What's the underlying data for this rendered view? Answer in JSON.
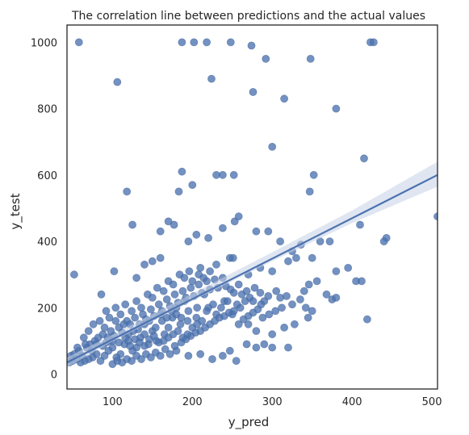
{
  "chart_data": {
    "type": "scatter",
    "title": "The correlation line between predictions and the actual values",
    "xlabel": "y_pred",
    "ylabel": "y_test",
    "xlim": [
      43,
      507
    ],
    "ylim": [
      -45,
      1052
    ],
    "xticks": [
      100,
      200,
      300,
      400,
      500
    ],
    "yticks": [
      0,
      200,
      400,
      600,
      800,
      1000
    ],
    "grid": false,
    "legend": "none",
    "point_color": "#4c72b0",
    "line_color": "#4c72b0",
    "band_color": "#c4d1e6",
    "regression": {
      "x": [
        43,
        507
      ],
      "y": [
        35,
        600
      ],
      "ci_band": {
        "x": [
          43,
          100,
          200,
          300,
          400,
          507
        ],
        "lower": [
          20,
          98,
          220,
          340,
          455,
          565
        ],
        "upper": [
          50,
          118,
          243,
          367,
          493,
          640
        ]
      }
    },
    "series": [
      {
        "points": [
          [
            58,
            1000
          ],
          [
            187,
            1000
          ],
          [
            202,
            1000
          ],
          [
            218,
            1000
          ],
          [
            248,
            1000
          ],
          [
            274,
            990
          ],
          [
            292,
            950
          ],
          [
            348,
            950
          ],
          [
            423,
            1000
          ],
          [
            427,
            1000
          ],
          [
            106,
            880
          ],
          [
            224,
            890
          ],
          [
            276,
            850
          ],
          [
            315,
            830
          ],
          [
            380,
            800
          ],
          [
            300,
            685
          ],
          [
            415,
            650
          ],
          [
            187,
            610
          ],
          [
            200,
            570
          ],
          [
            183,
            550
          ],
          [
            118,
            550
          ],
          [
            230,
            600
          ],
          [
            238,
            600
          ],
          [
            252,
            600
          ],
          [
            347,
            550
          ],
          [
            352,
            600
          ],
          [
            160,
            430
          ],
          [
            170,
            460
          ],
          [
            177,
            450
          ],
          [
            195,
            400
          ],
          [
            205,
            420
          ],
          [
            220,
            410
          ],
          [
            238,
            440
          ],
          [
            253,
            460
          ],
          [
            258,
            475
          ],
          [
            280,
            430
          ],
          [
            295,
            430
          ],
          [
            310,
            400
          ],
          [
            325,
            370
          ],
          [
            336,
            390
          ],
          [
            350,
            350
          ],
          [
            360,
            400
          ],
          [
            372,
            400
          ],
          [
            125,
            450
          ],
          [
            410,
            450
          ],
          [
            419,
            165
          ],
          [
            443,
            410
          ],
          [
            440,
            400
          ],
          [
            507,
            475
          ],
          [
            52,
            300
          ],
          [
            102,
            310
          ],
          [
            130,
            290
          ],
          [
            140,
            330
          ],
          [
            150,
            340
          ],
          [
            160,
            350
          ],
          [
            210,
            320
          ],
          [
            230,
            330
          ],
          [
            247,
            350
          ],
          [
            251,
            350
          ],
          [
            270,
            300
          ],
          [
            285,
            320
          ],
          [
            300,
            310
          ],
          [
            320,
            340
          ],
          [
            330,
            350
          ],
          [
            340,
            250
          ],
          [
            346,
            270
          ],
          [
            356,
            280
          ],
          [
            368,
            240
          ],
          [
            380,
            310
          ],
          [
            395,
            320
          ],
          [
            405,
            280
          ],
          [
            412,
            280
          ],
          [
            375,
            225
          ],
          [
            380,
            230
          ],
          [
            350,
            190
          ],
          [
            345,
            170
          ],
          [
            328,
            150
          ],
          [
            315,
            140
          ],
          [
            300,
            120
          ],
          [
            280,
            80
          ],
          [
            268,
            90
          ],
          [
            255,
            40
          ],
          [
            247,
            70
          ],
          [
            238,
            55
          ],
          [
            225,
            45
          ],
          [
            210,
            60
          ],
          [
            195,
            55
          ],
          [
            180,
            70
          ],
          [
            320,
            80
          ],
          [
            300,
            80
          ],
          [
            290,
            90
          ],
          [
            280,
            130
          ],
          [
            270,
            150
          ],
          [
            260,
            200
          ],
          [
            250,
            180
          ],
          [
            240,
            220
          ],
          [
            230,
            180
          ],
          [
            220,
            200
          ],
          [
            215,
            240
          ],
          [
            205,
            170
          ],
          [
            195,
            190
          ],
          [
            190,
            220
          ],
          [
            185,
            150
          ],
          [
            180,
            200
          ],
          [
            175,
            170
          ],
          [
            170,
            140
          ],
          [
            165,
            120
          ],
          [
            160,
            180
          ],
          [
            155,
            100
          ],
          [
            150,
            130
          ],
          [
            145,
            90
          ],
          [
            140,
            150
          ],
          [
            135,
            110
          ],
          [
            130,
            80
          ],
          [
            125,
            70
          ],
          [
            120,
            120
          ],
          [
            115,
            90
          ],
          [
            110,
            60
          ],
          [
            105,
            50
          ],
          [
            100,
            80
          ],
          [
            95,
            70
          ],
          [
            90,
            55
          ],
          [
            85,
            40
          ],
          [
            80,
            60
          ],
          [
            75,
            50
          ],
          [
            70,
            45
          ],
          [
            65,
            40
          ],
          [
            60,
            35
          ],
          [
            55,
            45
          ],
          [
            50,
            40
          ],
          [
            46,
            35
          ],
          [
            48,
            55
          ],
          [
            52,
            60
          ],
          [
            58,
            70
          ],
          [
            62,
            55
          ],
          [
            68,
            80
          ],
          [
            72,
            90
          ],
          [
            78,
            100
          ],
          [
            82,
            110
          ],
          [
            88,
            120
          ],
          [
            92,
            95
          ],
          [
            98,
            130
          ],
          [
            102,
            115
          ],
          [
            108,
            140
          ],
          [
            112,
            125
          ],
          [
            118,
            160
          ],
          [
            122,
            150
          ],
          [
            128,
            170
          ],
          [
            132,
            135
          ],
          [
            138,
            180
          ],
          [
            142,
            165
          ],
          [
            148,
            195
          ],
          [
            152,
            175
          ],
          [
            158,
            210
          ],
          [
            162,
            190
          ],
          [
            168,
            225
          ],
          [
            172,
            205
          ],
          [
            178,
            240
          ],
          [
            182,
            215
          ],
          [
            188,
            250
          ],
          [
            192,
            230
          ],
          [
            198,
            260
          ],
          [
            202,
            235
          ],
          [
            208,
            270
          ],
          [
            212,
            245
          ],
          [
            218,
            280
          ],
          [
            222,
            255
          ],
          [
            228,
            285
          ],
          [
            232,
            260
          ],
          [
            238,
            290
          ],
          [
            242,
            265
          ],
          [
            248,
            255
          ],
          [
            252,
            245
          ],
          [
            258,
            270
          ],
          [
            262,
            240
          ],
          [
            268,
            250
          ],
          [
            272,
            230
          ],
          [
            278,
            260
          ],
          [
            285,
            245
          ],
          [
            290,
            220
          ],
          [
            295,
            235
          ],
          [
            305,
            250
          ],
          [
            310,
            230
          ],
          [
            318,
            235
          ],
          [
            325,
            210
          ],
          [
            335,
            225
          ],
          [
            342,
            200
          ],
          [
            86,
            240
          ],
          [
            92,
            190
          ],
          [
            96,
            170
          ],
          [
            104,
            200
          ],
          [
            110,
            180
          ],
          [
            116,
            210
          ],
          [
            124,
            190
          ],
          [
            130,
            220
          ],
          [
            136,
            200
          ],
          [
            144,
            240
          ],
          [
            150,
            230
          ],
          [
            156,
            260
          ],
          [
            164,
            250
          ],
          [
            170,
            280
          ],
          [
            176,
            270
          ],
          [
            184,
            300
          ],
          [
            190,
            290
          ],
          [
            196,
            310
          ],
          [
            200,
            280
          ],
          [
            208,
            300
          ],
          [
            214,
            290
          ],
          [
            222,
            310
          ],
          [
            100,
            30
          ],
          [
            106,
            40
          ],
          [
            112,
            35
          ],
          [
            118,
            45
          ],
          [
            124,
            40
          ],
          [
            130,
            55
          ],
          [
            136,
            45
          ],
          [
            142,
            60
          ],
          [
            148,
            50
          ],
          [
            154,
            65
          ],
          [
            160,
            55
          ],
          [
            166,
            75
          ],
          [
            172,
            60
          ],
          [
            178,
            85
          ],
          [
            186,
            95
          ],
          [
            192,
            105
          ],
          [
            198,
            115
          ],
          [
            204,
            125
          ],
          [
            210,
            130
          ],
          [
            216,
            140
          ],
          [
            222,
            150
          ],
          [
            228,
            160
          ],
          [
            234,
            170
          ],
          [
            240,
            175
          ],
          [
            246,
            185
          ],
          [
            252,
            190
          ],
          [
            258,
            150
          ],
          [
            264,
            165
          ],
          [
            270,
            175
          ],
          [
            276,
            185
          ],
          [
            282,
            195
          ],
          [
            288,
            170
          ],
          [
            296,
            180
          ],
          [
            304,
            190
          ],
          [
            312,
            200
          ],
          [
            64,
            110
          ],
          [
            70,
            130
          ],
          [
            76,
            150
          ],
          [
            84,
            160
          ],
          [
            90,
            140
          ],
          [
            96,
            100
          ],
          [
            104,
            160
          ],
          [
            114,
            150
          ],
          [
            120,
            100
          ],
          [
            126,
            130
          ],
          [
            134,
            150
          ],
          [
            140,
            120
          ],
          [
            146,
            160
          ],
          [
            154,
            140
          ],
          [
            162,
            160
          ],
          [
            168,
            170
          ],
          [
            174,
            190
          ],
          [
            180,
            180
          ],
          [
            186,
            170
          ],
          [
            194,
            160
          ],
          [
            206,
            200
          ],
          [
            218,
            190
          ],
          [
            226,
            210
          ],
          [
            236,
            200
          ],
          [
            244,
            220
          ],
          [
            256,
            210
          ],
          [
            266,
            220
          ],
          [
            276,
            220
          ],
          [
            286,
            210
          ],
          [
            56,
            80
          ],
          [
            66,
            90
          ],
          [
            74,
            70
          ],
          [
            80,
            90
          ],
          [
            88,
            85
          ],
          [
            94,
            110
          ],
          [
            100,
            100
          ],
          [
            108,
            95
          ],
          [
            116,
            110
          ],
          [
            122,
            85
          ],
          [
            128,
            105
          ],
          [
            134,
            95
          ],
          [
            140,
            85
          ],
          [
            146,
            105
          ],
          [
            152,
            115
          ],
          [
            158,
            95
          ],
          [
            164,
            100
          ],
          [
            170,
            110
          ],
          [
            176,
            120
          ],
          [
            182,
            130
          ],
          [
            188,
            110
          ],
          [
            194,
            120
          ],
          [
            200,
            140
          ],
          [
            206,
            150
          ],
          [
            212,
            160
          ]
        ]
      }
    ]
  }
}
